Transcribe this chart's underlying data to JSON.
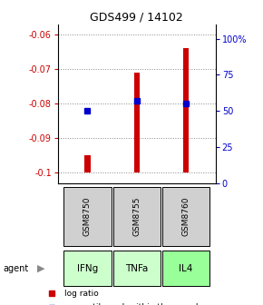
{
  "title": "GDS499 / 14102",
  "samples": [
    "GSM8750",
    "GSM8755",
    "GSM8760"
  ],
  "agents": [
    "IFNg",
    "TNFa",
    "IL4"
  ],
  "log_ratios": [
    -0.095,
    -0.071,
    -0.064
  ],
  "percentile_ranks": [
    50,
    57,
    55
  ],
  "ylim_left": [
    -0.103,
    -0.057
  ],
  "ylim_right": [
    0,
    110
  ],
  "yticks_left": [
    -0.1,
    -0.09,
    -0.08,
    -0.07,
    -0.06
  ],
  "yticks_right": [
    0,
    25,
    50,
    75,
    100
  ],
  "ytick_labels_left": [
    "-0.1",
    "-0.09",
    "-0.08",
    "-0.07",
    "-0.06"
  ],
  "ytick_labels_right": [
    "0",
    "25",
    "50",
    "75",
    "100%"
  ],
  "bar_color": "#cc0000",
  "marker_color": "#0000cc",
  "agent_colors": [
    "#ccffcc",
    "#ccffcc",
    "#99ff99"
  ],
  "sample_bg_color": "#d0d0d0",
  "grid_color": "#888888",
  "title_color": "#000000",
  "left_tick_color": "#cc0000",
  "right_tick_color": "#0000cc",
  "bar_width": 0.12,
  "baseline": -0.1
}
